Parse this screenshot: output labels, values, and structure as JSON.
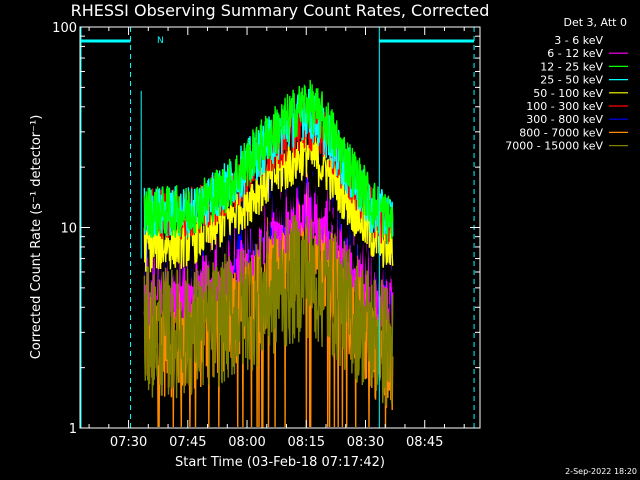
{
  "chart_data": {
    "type": "line",
    "title": "RHESSI Observing Summary Count Rates, Corrected",
    "xlabel": "Start Time (03-Feb-18 07:17:42)",
    "ylabel": "Corrected Count Rate (s⁻¹ detector⁻¹)",
    "y_scale": "log",
    "ylim": [
      1,
      100
    ],
    "xlim": [
      "07:17:42",
      "08:59:00"
    ],
    "y_ticks": [
      "1",
      "10",
      "100"
    ],
    "x_ticks": [
      "07:30",
      "07:45",
      "08:00",
      "08:15",
      "08:30",
      "08:45"
    ],
    "x_tick_values": [
      30,
      45,
      60,
      75,
      90,
      105
    ],
    "x_range_minutes": [
      17.7,
      119.0
    ],
    "legend_title": "Det 3, Att 0",
    "legend_position": "right",
    "flag_marker": "N",
    "series": [
      {
        "name": "3 - 6 keV",
        "color": "#000000",
        "values_by_minute": [
          [
            35,
            7
          ],
          [
            45,
            7.5
          ],
          [
            55,
            9
          ],
          [
            65,
            13
          ],
          [
            75,
            17
          ],
          [
            80,
            15
          ],
          [
            85,
            10
          ],
          [
            92,
            7
          ],
          [
            96,
            6
          ]
        ]
      },
      {
        "name": "6 - 12 keV",
        "color": "#ff00ff",
        "values_by_minute": [
          [
            35,
            5
          ],
          [
            45,
            5.5
          ],
          [
            55,
            7
          ],
          [
            65,
            10
          ],
          [
            75,
            13
          ],
          [
            80,
            11
          ],
          [
            85,
            8
          ],
          [
            92,
            5
          ],
          [
            96,
            4.5
          ]
        ]
      },
      {
        "name": "12 - 25 keV",
        "color": "#00ff00",
        "values_by_minute": [
          [
            35,
            12
          ],
          [
            45,
            12
          ],
          [
            55,
            16
          ],
          [
            65,
            28
          ],
          [
            75,
            42
          ],
          [
            80,
            34
          ],
          [
            85,
            22
          ],
          [
            92,
            13
          ],
          [
            96,
            11
          ]
        ]
      },
      {
        "name": "25 - 50 keV",
        "color": "#00ffff",
        "values_by_minute": [
          [
            35,
            12
          ],
          [
            45,
            12
          ],
          [
            55,
            16
          ],
          [
            65,
            26
          ],
          [
            75,
            38
          ],
          [
            80,
            30
          ],
          [
            85,
            20
          ],
          [
            92,
            12
          ],
          [
            96,
            11
          ]
        ]
      },
      {
        "name": "50 - 100 keV",
        "color": "#ffff00",
        "values_by_minute": [
          [
            35,
            8
          ],
          [
            45,
            8.5
          ],
          [
            55,
            11
          ],
          [
            65,
            17
          ],
          [
            75,
            24
          ],
          [
            80,
            20
          ],
          [
            85,
            14
          ],
          [
            92,
            9
          ],
          [
            96,
            8
          ]
        ]
      },
      {
        "name": "100 - 300 keV",
        "color": "#ff0000",
        "values_by_minute": [
          [
            35,
            12
          ],
          [
            45,
            11.5
          ],
          [
            55,
            15
          ],
          [
            65,
            24
          ],
          [
            75,
            33
          ],
          [
            80,
            28
          ],
          [
            85,
            19
          ],
          [
            92,
            12
          ],
          [
            96,
            10
          ]
        ]
      },
      {
        "name": "300 - 800 keV",
        "color": "#0000ff",
        "values_by_minute": [
          [
            35,
            6.5
          ],
          [
            45,
            6.5
          ],
          [
            55,
            8.5
          ],
          [
            65,
            12
          ],
          [
            75,
            15
          ],
          [
            80,
            13
          ],
          [
            85,
            9.5
          ],
          [
            92,
            6.5
          ],
          [
            96,
            6
          ]
        ]
      },
      {
        "name": "800 - 7000 keV",
        "color": "#ff8c00",
        "values_by_minute": [
          [
            35,
            3
          ],
          [
            45,
            3
          ],
          [
            55,
            4
          ],
          [
            65,
            6
          ],
          [
            75,
            9
          ],
          [
            80,
            8
          ],
          [
            85,
            5
          ],
          [
            92,
            3
          ],
          [
            96,
            2.5
          ]
        ]
      },
      {
        "name": "7000 - 15000 keV",
        "color": "#808000",
        "values_by_minute": [
          [
            35,
            3
          ],
          [
            45,
            3
          ],
          [
            55,
            3.5
          ],
          [
            65,
            4.5
          ],
          [
            75,
            6
          ],
          [
            80,
            5
          ],
          [
            85,
            4
          ],
          [
            92,
            3
          ],
          [
            96,
            2.5
          ]
        ]
      }
    ],
    "flags": {
      "top_bars_minutes": [
        [
          17.7,
          30.5
        ],
        [
          93.5,
          117.5
        ]
      ],
      "dashed_lines_minutes": [
        30.5,
        117.5
      ],
      "solid_lines_minutes": [
        17.7,
        93.5
      ],
      "color": "#00ffff"
    }
  },
  "footer": {
    "date_stamp": "2-Sep-2022 18:20"
  }
}
